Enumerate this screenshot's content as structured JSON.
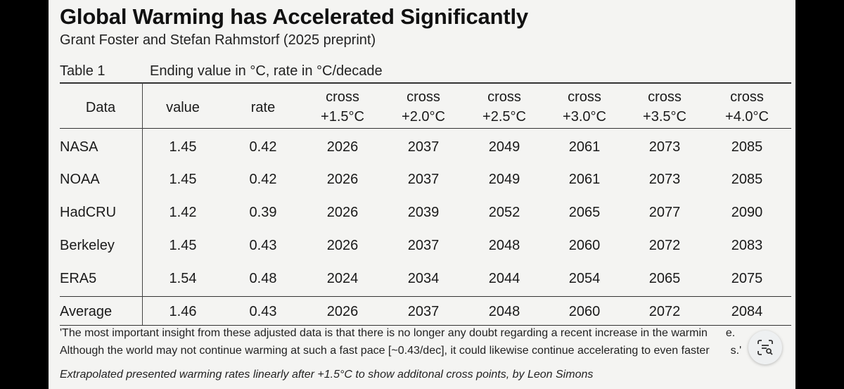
{
  "title": "Global Warming has Accelerated Significantly",
  "subtitle": "Grant Foster and Stefan Rahmstorf (2025 preprint)",
  "table": {
    "label": "Table 1",
    "caption": "Ending value in °C, rate in °C/decade",
    "headers": {
      "data": "Data",
      "value": "value",
      "rate": "rate",
      "cross": [
        {
          "line1": "cross",
          "line2": "+1.5°C"
        },
        {
          "line1": "cross",
          "line2": "+2.0°C"
        },
        {
          "line1": "cross",
          "line2": "+2.5°C"
        },
        {
          "line1": "cross",
          "line2": "+3.0°C"
        },
        {
          "line1": "cross",
          "line2": "+3.5°C"
        },
        {
          "line1": "cross",
          "line2": "+4.0°C"
        }
      ]
    },
    "rows": [
      {
        "name": "NASA",
        "value": "1.45",
        "rate": "0.42",
        "cross": [
          "2026",
          "2037",
          "2049",
          "2061",
          "2073",
          "2085"
        ]
      },
      {
        "name": "NOAA",
        "value": "1.45",
        "rate": "0.42",
        "cross": [
          "2026",
          "2037",
          "2049",
          "2061",
          "2073",
          "2085"
        ]
      },
      {
        "name": "HadCRU",
        "value": "1.42",
        "rate": "0.39",
        "cross": [
          "2026",
          "2039",
          "2052",
          "2065",
          "2077",
          "2090"
        ]
      },
      {
        "name": "Berkeley",
        "value": "1.45",
        "rate": "0.43",
        "cross": [
          "2026",
          "2037",
          "2048",
          "2060",
          "2072",
          "2083"
        ]
      },
      {
        "name": "ERA5",
        "value": "1.54",
        "rate": "0.48",
        "cross": [
          "2024",
          "2034",
          "2044",
          "2054",
          "2065",
          "2075"
        ]
      }
    ],
    "average": {
      "name": "Average",
      "value": "1.46",
      "rate": "0.43",
      "cross": [
        "2026",
        "2037",
        "2048",
        "2060",
        "2072",
        "2084"
      ]
    }
  },
  "quote": {
    "line1": "'The most important insight from these adjusted data is that there is no longer any doubt regarding a recent increase in the warmin",
    "line1_tail": "e.",
    "line2": "Although the world may not continue warming at such a fast pace [~0.43/dec], it could likewise continue accelerating to even faster",
    "line2_tail": "s.'"
  },
  "footnote": "Extrapolated presented warming rates linearly after +1.5°C to show additonal cross points, by Leon Simons",
  "overlay": {
    "icon": "lens-search-icon"
  }
}
